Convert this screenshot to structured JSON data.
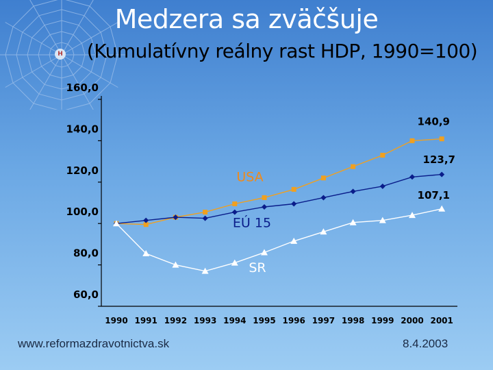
{
  "title": "Medzera sa zväčšuje",
  "subtitle": "(Kumulatívny reálny rast HDP, 1990=100)",
  "footer": {
    "url": "www.reformazdravotnictva.sk",
    "date": "8.4.2003"
  },
  "chart_data": {
    "type": "line",
    "x": [
      "1990",
      "1991",
      "1992",
      "1993",
      "1994",
      "1995",
      "1996",
      "1997",
      "1998",
      "1999",
      "2000",
      "2001"
    ],
    "y_ticks": [
      "160,0",
      "140,0",
      "120,0",
      "100,0",
      "80,0",
      "60,0"
    ],
    "ylim": [
      60,
      160
    ],
    "series": [
      {
        "name": "USA",
        "color": "#f0a020",
        "marker": "square",
        "values": [
          100,
          99.5,
          103,
          105.5,
          109.5,
          112.5,
          116.5,
          122,
          127.5,
          133,
          140,
          140.9
        ]
      },
      {
        "name": "EÚ 15",
        "color": "#0a1d8a",
        "marker": "diamond",
        "values": [
          100,
          101.5,
          103,
          102.5,
          105.5,
          108,
          109.5,
          112.5,
          115.5,
          118,
          122.5,
          123.7
        ]
      },
      {
        "name": "SR",
        "color": "#ffffff",
        "marker": "triangle",
        "values": [
          100,
          85.5,
          80,
          77,
          81,
          86,
          91.5,
          96,
          100.5,
          101.5,
          104,
          107.1
        ]
      }
    ],
    "end_labels": [
      "140,9",
      "123,7",
      "107,1"
    ]
  }
}
